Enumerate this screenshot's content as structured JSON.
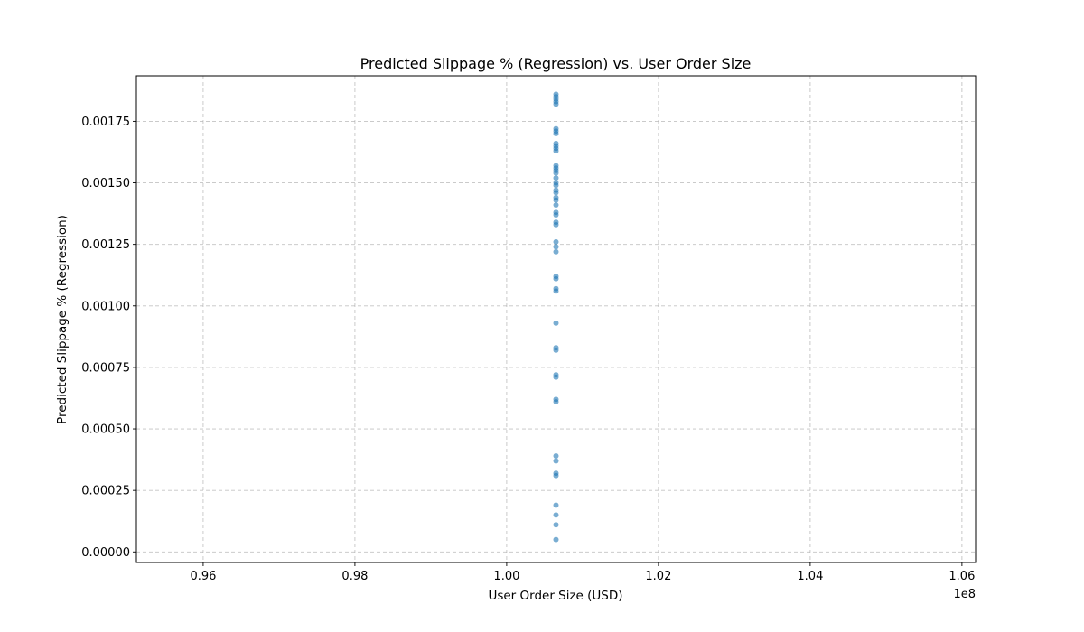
{
  "chart_data": {
    "type": "scatter",
    "title": "Predicted Slippage % (Regression) vs. User Order Size",
    "xlabel": "User Order Size (USD)",
    "ylabel": "Predicted Slippage % (Regression)",
    "x_offset_label": "1e8",
    "x_scale": 100000000,
    "xlim": [
      0.9512,
      1.0618
    ],
    "ylim": [
      -4.3e-05,
      0.001935
    ],
    "x_ticks": [
      0.96,
      0.98,
      1.0,
      1.02,
      1.04,
      1.06
    ],
    "x_tick_labels": [
      "0.96",
      "0.98",
      "1.00",
      "1.02",
      "1.04",
      "1.06"
    ],
    "y_ticks": [
      0.0,
      0.00025,
      0.0005,
      0.00075,
      0.001,
      0.00125,
      0.0015,
      0.00175
    ],
    "y_tick_labels": [
      "0.00000",
      "0.00025",
      "0.00050",
      "0.00075",
      "0.00100",
      "0.00125",
      "0.00150",
      "0.00175"
    ],
    "grid": true,
    "marker_color": "#1f77b4",
    "marker_alpha": 0.6,
    "series": [
      {
        "x": [
          1.0065,
          1.0065,
          1.0065,
          1.0065,
          1.0065,
          1.0065,
          1.0065,
          1.0065,
          1.0065,
          1.0065,
          1.0065,
          1.0065,
          1.0065,
          1.0065,
          1.0065,
          1.0065,
          1.0065,
          1.0065,
          1.0065,
          1.0065,
          1.0065,
          1.0065,
          1.0065,
          1.0065,
          1.0065,
          1.0065,
          1.0065,
          1.0065,
          1.0065,
          1.0065,
          1.0065,
          1.0065,
          1.0065,
          1.0065,
          1.0065,
          1.0065,
          1.0065,
          1.0065,
          1.0065,
          1.0065,
          1.0065,
          1.0065,
          1.0065,
          1.0065,
          1.0065,
          1.0065,
          1.0065,
          1.0065,
          1.0065,
          1.0065
        ],
        "y": [
          5e-05,
          0.00011,
          0.00015,
          0.00019,
          0.00031,
          0.00032,
          0.00037,
          0.00039,
          0.00061,
          0.00062,
          0.00071,
          0.00072,
          0.00082,
          0.00083,
          0.00093,
          0.00106,
          0.00107,
          0.00111,
          0.00112,
          0.00122,
          0.00124,
          0.00126,
          0.00133,
          0.00134,
          0.00137,
          0.00138,
          0.00141,
          0.00143,
          0.00144,
          0.00146,
          0.00147,
          0.00149,
          0.0015,
          0.00152,
          0.00154,
          0.00155,
          0.00156,
          0.00157,
          0.00163,
          0.00164,
          0.00165,
          0.00166,
          0.0017,
          0.00171,
          0.00172,
          0.00182,
          0.00183,
          0.00184,
          0.00185,
          0.00186
        ]
      }
    ]
  }
}
